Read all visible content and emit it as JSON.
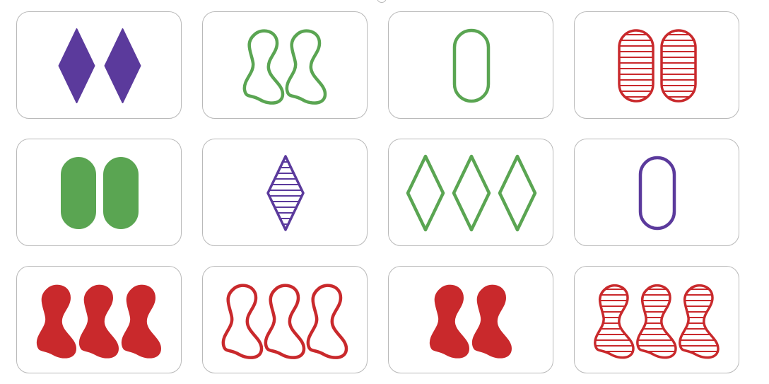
{
  "game": {
    "name": "set-card-board",
    "colors": {
      "purple": "#5b3a9c",
      "green": "#5aa552",
      "red": "#c9292c"
    },
    "cards": [
      {
        "id": "card-1",
        "count": 2,
        "shape": "diamond",
        "fill": "solid",
        "color": "purple"
      },
      {
        "id": "card-2",
        "count": 2,
        "shape": "squiggle",
        "fill": "outline",
        "color": "green"
      },
      {
        "id": "card-3",
        "count": 1,
        "shape": "oval",
        "fill": "outline",
        "color": "green"
      },
      {
        "id": "card-4",
        "count": 2,
        "shape": "oval",
        "fill": "striped",
        "color": "red"
      },
      {
        "id": "card-5",
        "count": 2,
        "shape": "oval",
        "fill": "solid",
        "color": "green"
      },
      {
        "id": "card-6",
        "count": 1,
        "shape": "diamond",
        "fill": "striped",
        "color": "purple"
      },
      {
        "id": "card-7",
        "count": 3,
        "shape": "diamond",
        "fill": "outline",
        "color": "green"
      },
      {
        "id": "card-8",
        "count": 1,
        "shape": "oval",
        "fill": "outline",
        "color": "purple"
      },
      {
        "id": "card-9",
        "count": 3,
        "shape": "squiggle",
        "fill": "solid",
        "color": "red"
      },
      {
        "id": "card-10",
        "count": 3,
        "shape": "squiggle",
        "fill": "outline",
        "color": "red"
      },
      {
        "id": "card-11",
        "count": 2,
        "shape": "squiggle",
        "fill": "solid",
        "color": "red"
      },
      {
        "id": "card-12",
        "count": 3,
        "shape": "squiggle",
        "fill": "striped",
        "color": "red"
      }
    ]
  }
}
